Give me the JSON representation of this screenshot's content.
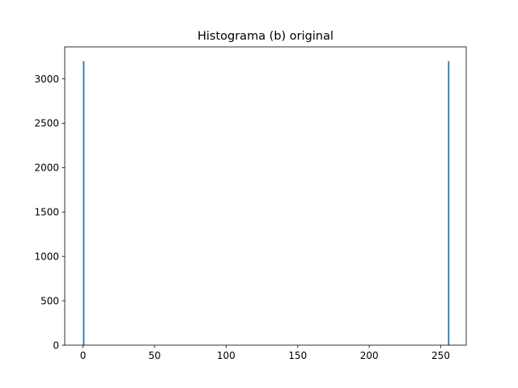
{
  "chart_data": {
    "type": "bar",
    "title": "Histograma (b) original",
    "xlabel": "",
    "ylabel": "",
    "xlim": [
      -12.75,
      267.75
    ],
    "ylim": [
      0,
      3360
    ],
    "x_ticks": [
      0,
      50,
      100,
      150,
      200,
      250
    ],
    "y_ticks": [
      0,
      500,
      1000,
      1500,
      2000,
      2500,
      3000
    ],
    "bar_width": 0.99609375,
    "bars": [
      {
        "x": 0,
        "value": 3200
      },
      {
        "x": 255,
        "value": 3200
      }
    ],
    "bar_color": "#1f77b4",
    "grid": false,
    "legend": "none"
  }
}
